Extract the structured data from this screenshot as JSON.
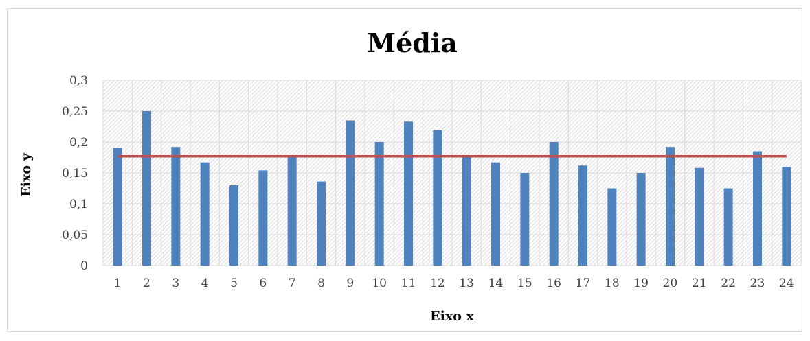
{
  "chart_data": {
    "type": "bar",
    "title": "Média",
    "xlabel": "Eixo x",
    "ylabel": "Eixo y",
    "categories": [
      "1",
      "2",
      "3",
      "4",
      "5",
      "6",
      "7",
      "8",
      "9",
      "10",
      "11",
      "12",
      "13",
      "14",
      "15",
      "16",
      "17",
      "18",
      "19",
      "20",
      "21",
      "22",
      "23",
      "24"
    ],
    "series": [
      {
        "type": "bar",
        "color": "#4f81bd",
        "values": [
          0.19,
          0.25,
          0.192,
          0.167,
          0.13,
          0.154,
          0.175,
          0.136,
          0.235,
          0.2,
          0.233,
          0.219,
          0.178,
          0.167,
          0.15,
          0.2,
          0.162,
          0.125,
          0.15,
          0.192,
          0.158,
          0.125,
          0.185,
          0.16
        ]
      },
      {
        "type": "line",
        "color": "#c0504d",
        "values": [
          0.177,
          0.177,
          0.177,
          0.177,
          0.177,
          0.177,
          0.177,
          0.177,
          0.177,
          0.177,
          0.177,
          0.177,
          0.177,
          0.177,
          0.177,
          0.177,
          0.177,
          0.177,
          0.177,
          0.177,
          0.177,
          0.177,
          0.177,
          0.177
        ]
      }
    ],
    "ylim": [
      0,
      0.3
    ],
    "yticks": [
      0,
      0.05,
      0.1,
      0.15,
      0.2,
      0.25,
      0.3
    ],
    "ytick_labels": [
      "0",
      "0,05",
      "0,1",
      "0,15",
      "0,2",
      "0,25",
      "0,3"
    ],
    "grid": true,
    "legend": "none"
  }
}
